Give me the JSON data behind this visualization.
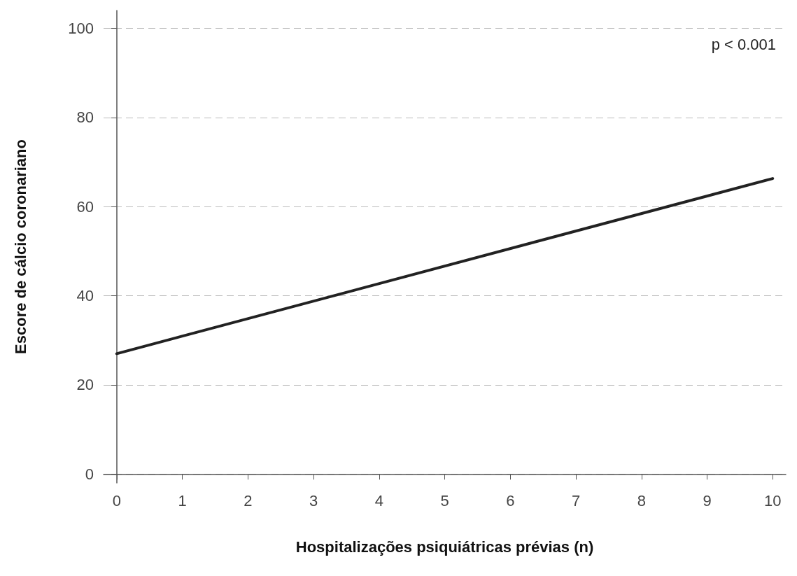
{
  "chart_data": {
    "type": "line",
    "xlabel": "Hospitalizações psiquiátricas prévias (n)",
    "ylabel": "Escore de cálcio coronariano",
    "x": [
      0,
      10
    ],
    "series": [
      {
        "color": "#222222",
        "values": [
          27,
          66.3
        ]
      }
    ],
    "xlim": [
      -0.2,
      10.2
    ],
    "xticks": [
      0,
      1,
      2,
      3,
      4,
      5,
      6,
      7,
      8,
      9,
      10
    ],
    "ylim": [
      -2,
      104
    ],
    "yticks": [
      0,
      20,
      40,
      60,
      80,
      100
    ],
    "grid": "y",
    "marker": "none",
    "line_style": "solid",
    "annotations": [
      "p < 0.001"
    ]
  }
}
